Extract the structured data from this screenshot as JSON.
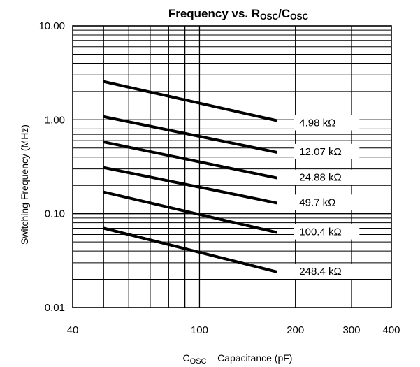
{
  "chart_data": {
    "type": "line",
    "title": {
      "main": "Frequency vs. R",
      "sub1": "OSC",
      "slash": "/C",
      "sub2": "OSC"
    },
    "xlabel": {
      "main": "C",
      "sub": "OSC",
      "rest": " – Capacitance (pF)"
    },
    "ylabel": "Switching Frequency (MHz)",
    "x_scale": "log",
    "y_scale": "log",
    "xlim": [
      40,
      400
    ],
    "ylim": [
      0.01,
      10
    ],
    "x_ticks": [
      {
        "value": 40,
        "label": "40"
      },
      {
        "value": 100,
        "label": "100"
      },
      {
        "value": 200,
        "label": "200"
      },
      {
        "value": 300,
        "label": "300"
      },
      {
        "value": 400,
        "label": "400"
      }
    ],
    "y_ticks": [
      {
        "value": 10,
        "label": "10.00"
      },
      {
        "value": 1,
        "label": "1.00"
      },
      {
        "value": 0.1,
        "label": "0.10"
      },
      {
        "value": 0.01,
        "label": "0.01"
      }
    ],
    "grid": true,
    "series": [
      {
        "name": "4.98 kΩ",
        "x": [
          50,
          175
        ],
        "y": [
          2.55,
          0.98
        ]
      },
      {
        "name": "12.07 kΩ",
        "x": [
          50,
          175
        ],
        "y": [
          1.08,
          0.45
        ]
      },
      {
        "name": "24.88 kΩ",
        "x": [
          50,
          175
        ],
        "y": [
          0.58,
          0.24
        ]
      },
      {
        "name": "49.7 kΩ",
        "x": [
          50,
          175
        ],
        "y": [
          0.31,
          0.13
        ]
      },
      {
        "name": "100.4 kΩ",
        "x": [
          50,
          175
        ],
        "y": [
          0.17,
          0.063
        ]
      },
      {
        "name": "248.4 kΩ",
        "x": [
          50,
          175
        ],
        "y": [
          0.07,
          0.024
        ]
      }
    ]
  }
}
